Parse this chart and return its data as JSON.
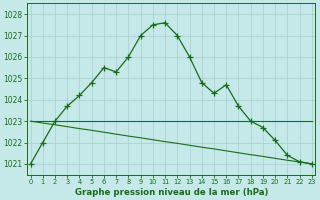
{
  "title": "Graphe pression niveau de la mer (hPa)",
  "background_color": "#c5e8e8",
  "line_color": "#1a6b1a",
  "grid_color": "#a8cece",
  "y_main": [
    1021.0,
    1022.0,
    1023.0,
    1023.7,
    1024.2,
    1024.8,
    1025.5,
    1025.3,
    1026.0,
    1027.0,
    1027.5,
    1027.6,
    1027.0,
    1026.0,
    1024.8,
    1024.3,
    1024.7,
    1023.7,
    1023.0,
    1022.7,
    1022.1,
    1021.4,
    1021.1,
    1021.0
  ],
  "y_flat": [
    1023.0,
    1023.0,
    1023.0,
    1023.0,
    1023.0,
    1023.0,
    1023.0,
    1023.0,
    1023.0,
    1023.0,
    1023.0,
    1023.0,
    1023.0,
    1023.0,
    1023.0,
    1023.0,
    1023.0,
    1023.0,
    1023.0,
    1023.0,
    1023.0,
    1023.0,
    1023.0,
    1023.0
  ],
  "y_diag": [
    1023.0,
    1022.91,
    1022.83,
    1022.74,
    1022.65,
    1022.57,
    1022.48,
    1022.39,
    1022.3,
    1022.22,
    1022.13,
    1022.04,
    1021.96,
    1021.87,
    1021.78,
    1021.7,
    1021.61,
    1021.52,
    1021.43,
    1021.35,
    1021.26,
    1021.17,
    1021.09,
    1021.0
  ],
  "ylim": [
    1020.5,
    1028.5
  ],
  "yticks": [
    1021,
    1022,
    1023,
    1024,
    1025,
    1026,
    1027,
    1028
  ],
  "xlim": [
    -0.3,
    23.3
  ],
  "xticks": [
    0,
    1,
    2,
    3,
    4,
    5,
    6,
    7,
    8,
    9,
    10,
    11,
    12,
    13,
    14,
    15,
    16,
    17,
    18,
    19,
    20,
    21,
    22,
    23
  ]
}
